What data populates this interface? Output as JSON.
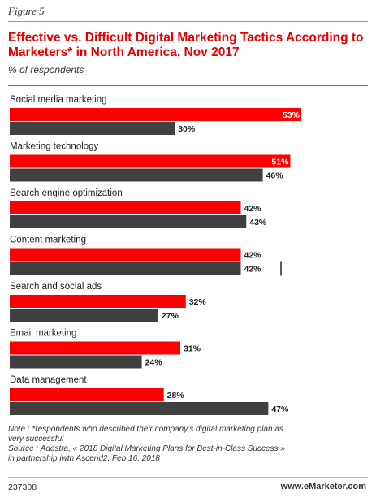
{
  "figure_label": "Figure 5",
  "chart_data": {
    "type": "bar",
    "orientation": "horizontal",
    "title": "Effective vs. Difficult Digital Marketing Tactics According to Marketers* in North America, Nov 2017",
    "subtitle": "% of respondents",
    "categories": [
      "Social media marketing",
      "Marketing technology",
      "Search engine optimization",
      "Content marketing",
      "Search and social ads",
      "Email marketing",
      "Data management"
    ],
    "series": [
      {
        "values": [
          53,
          51,
          42,
          42,
          32,
          31,
          28
        ],
        "labels": [
          "53%",
          "51%",
          "42%",
          "42%",
          "32%",
          "31%",
          "28%"
        ],
        "color": "#ff0000"
      },
      {
        "values": [
          30,
          46,
          43,
          42,
          27,
          24,
          47
        ],
        "labels": [
          "30%",
          "46%",
          "43%",
          "42%",
          "27%",
          "24%",
          "47%"
        ],
        "color": "#404040"
      }
    ],
    "xlim": [
      0,
      53
    ],
    "grid": false,
    "legend": "none"
  },
  "note": {
    "line1": "Note : *respondents who described their company’s digital marketing plan as",
    "line2": "very successful",
    "line3": "Source : Adestra, « 2018 Digital Marketing Plans for Best-in-Class Success »",
    "line4": "in partnership iwth Ascend2, Feb 16, 2018"
  },
  "footer": {
    "id": "237308",
    "brand": "www.eMarketer.com"
  }
}
